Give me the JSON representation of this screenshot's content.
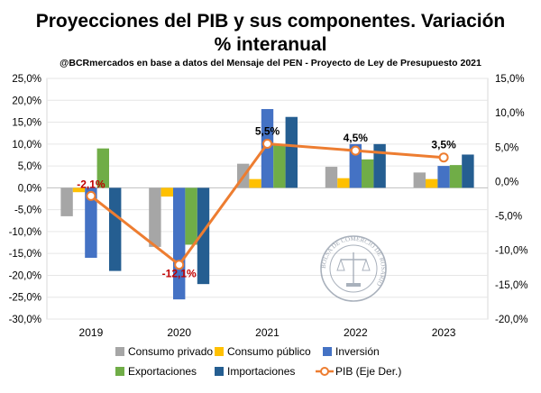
{
  "chart_data": {
    "type": "bar",
    "title_line1": "Proyecciones del PIB y sus componentes. Variación",
    "title_line2": "% interanual",
    "subtitle": "@BCRmercados en base a datos del Mensaje del PEN - Proyecto de Ley de Presupuesto 2021",
    "categories": [
      "2019",
      "2020",
      "2021",
      "2022",
      "2023"
    ],
    "y_left": {
      "min": -30,
      "max": 25,
      "step": 5,
      "ticks": [
        "25,0%",
        "20,0%",
        "15,0%",
        "10,0%",
        "5,0%",
        "0,0%",
        "-5,0%",
        "-10,0%",
        "-15,0%",
        "-20,0%",
        "-25,0%",
        "-30,0%"
      ]
    },
    "y_right": {
      "min": -20,
      "max": 15,
      "step": 5,
      "ticks": [
        "15,0%",
        "10,0%",
        "5,0%",
        "0,0%",
        "-5,0%",
        "-10,0%",
        "-15,0%",
        "-20,0%"
      ]
    },
    "series": [
      {
        "name": "Consumo privado",
        "color": "#a6a6a6",
        "axis": "left",
        "values": [
          -6.5,
          -13.5,
          5.5,
          4.8,
          3.5
        ]
      },
      {
        "name": "Consumo público",
        "color": "#ffc000",
        "axis": "left",
        "values": [
          -1.0,
          -2.0,
          2.0,
          2.2,
          2.0
        ]
      },
      {
        "name": "Inversión",
        "color": "#4472c4",
        "axis": "left",
        "values": [
          -16.0,
          -25.5,
          18.0,
          10.0,
          5.0
        ]
      },
      {
        "name": "Exportaciones",
        "color": "#70ad47",
        "axis": "left",
        "values": [
          9.0,
          -13.0,
          10.0,
          6.5,
          5.2
        ]
      },
      {
        "name": "Importaciones",
        "color": "#255e91",
        "axis": "left",
        "values": [
          -19.0,
          -22.0,
          16.2,
          10.0,
          7.6
        ]
      }
    ],
    "line_series": {
      "name": "PIB (Eje Der.)",
      "color": "#ed7d31",
      "axis": "right",
      "values": [
        -2.1,
        -12.1,
        5.5,
        4.5,
        3.5
      ],
      "labels": [
        "-2,1%",
        "-12,1%",
        "5,5%",
        "4,5%",
        "3,5%"
      ],
      "label_colors": [
        "#c00000",
        "#c00000",
        "#000000",
        "#000000",
        "#000000"
      ]
    },
    "legend": {
      "placement": "bottom",
      "items": [
        {
          "name": "Consumo privado",
          "color": "#a6a6a6",
          "kind": "box"
        },
        {
          "name": "Consumo público",
          "color": "#ffc000",
          "kind": "box"
        },
        {
          "name": "Inversión",
          "color": "#4472c4",
          "kind": "box"
        },
        {
          "name": "Exportaciones",
          "color": "#70ad47",
          "kind": "box"
        },
        {
          "name": "Importaciones",
          "color": "#255e91",
          "kind": "box"
        },
        {
          "name": "PIB (Eje Der.)",
          "color": "#ed7d31",
          "kind": "line-marker"
        }
      ]
    },
    "watermark": {
      "seal_text": "BOLSA DE COMERCIO DE ROSARIO"
    }
  }
}
